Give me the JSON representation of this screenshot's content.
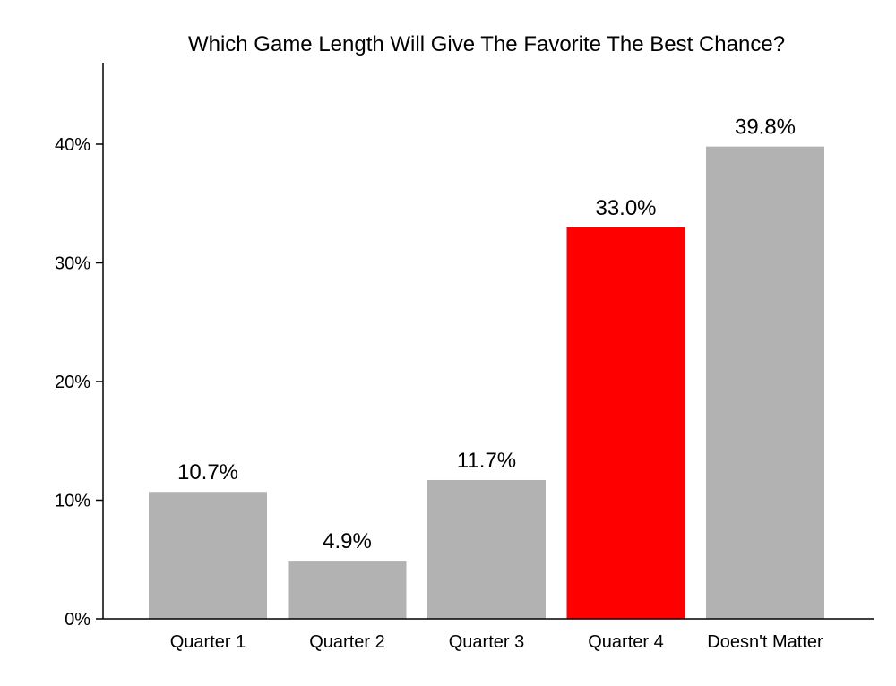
{
  "chart_data": {
    "type": "bar",
    "title": "Which Game Length Will Give The Favorite The Best Chance?",
    "xlabel": "",
    "ylabel": "",
    "categories": [
      "Quarter 1",
      "Quarter 2",
      "Quarter 3",
      "Quarter 4",
      "Doesn't Matter"
    ],
    "values": [
      10.7,
      4.9,
      11.7,
      33.0,
      39.8
    ],
    "value_labels": [
      "10.7%",
      "4.9%",
      "11.7%",
      "33.0%",
      "39.8%"
    ],
    "ylim": [
      0,
      46
    ],
    "yticks": [
      0,
      10,
      20,
      30,
      40
    ],
    "ytick_labels": [
      "0%",
      "10%",
      "20%",
      "30%",
      "40%"
    ],
    "grid": false,
    "legend": "none",
    "colors": {
      "default_bar": "#b2b2b2",
      "highlight_bar": "#ff0000",
      "axis": "#000000"
    },
    "highlight_index": 3
  }
}
